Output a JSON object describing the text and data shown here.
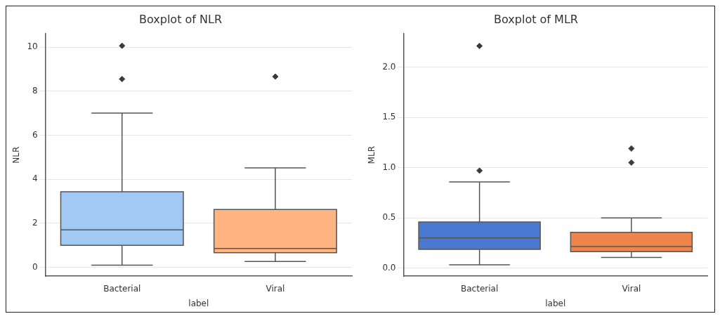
{
  "chart_data": [
    {
      "type": "box",
      "title": "Boxplot of NLR",
      "xlabel": "label",
      "ylabel": "NLR",
      "categories": [
        "Bacterial",
        "Viral"
      ],
      "colors": [
        "#a1c9f4",
        "#ffb482"
      ],
      "boxes": [
        {
          "low": 0.1,
          "q1": 1.0,
          "median": 1.7,
          "q3": 3.43,
          "high": 7.0,
          "outliers": [
            10.06,
            8.55
          ]
        },
        {
          "low": 0.27,
          "q1": 0.67,
          "median": 0.86,
          "q3": 2.63,
          "high": 4.52,
          "outliers": [
            8.66
          ]
        }
      ],
      "ylim": [
        -0.4,
        10.6
      ],
      "yticks": [
        0,
        2,
        4,
        6,
        8,
        10
      ],
      "grid": "y",
      "marker": "diamond"
    },
    {
      "type": "box",
      "title": "Boxplot of MLR",
      "xlabel": "label",
      "ylabel": "MLR",
      "categories": [
        "Bacterial",
        "Viral"
      ],
      "colors": [
        "#4878d0",
        "#ee854a"
      ],
      "boxes": [
        {
          "low": 0.034,
          "q1": 0.186,
          "median": 0.3,
          "q3": 0.46,
          "high": 0.857,
          "outliers": [
            2.21,
            0.97
          ]
        },
        {
          "low": 0.107,
          "q1": 0.164,
          "median": 0.214,
          "q3": 0.357,
          "high": 0.5,
          "outliers": [
            1.19,
            1.05
          ]
        }
      ],
      "ylim": [
        -0.08,
        2.33
      ],
      "yticks": [
        {
          "value": 0,
          "label": "0.0"
        },
        {
          "value": 0.5,
          "label": "0.5"
        },
        {
          "value": 1,
          "label": "1.0"
        },
        {
          "value": 1.5,
          "label": "1.5"
        },
        {
          "value": 2,
          "label": "2.0"
        }
      ],
      "grid": "y",
      "marker": "diamond"
    }
  ]
}
